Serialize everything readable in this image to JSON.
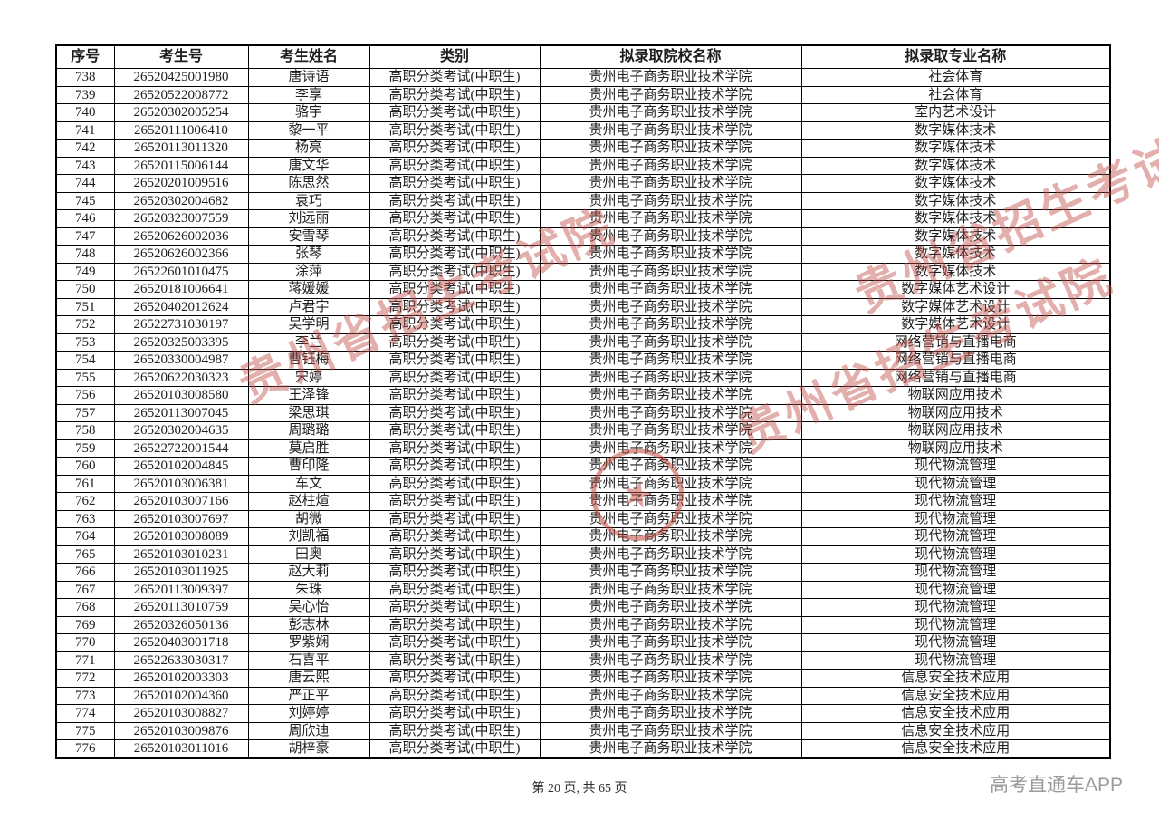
{
  "table": {
    "columns": [
      "序号",
      "考生号",
      "考生姓名",
      "类别",
      "拟录取院校名称",
      "拟录取专业名称"
    ],
    "rows": [
      [
        "738",
        "26520425001980",
        "唐诗语",
        "高职分类考试(中职生)",
        "贵州电子商务职业技术学院",
        "社会体育"
      ],
      [
        "739",
        "26520522008772",
        "李享",
        "高职分类考试(中职生)",
        "贵州电子商务职业技术学院",
        "社会体育"
      ],
      [
        "740",
        "26520302005254",
        "骆宇",
        "高职分类考试(中职生)",
        "贵州电子商务职业技术学院",
        "室内艺术设计"
      ],
      [
        "741",
        "26520111006410",
        "黎一平",
        "高职分类考试(中职生)",
        "贵州电子商务职业技术学院",
        "数字媒体技术"
      ],
      [
        "742",
        "26520113011320",
        "杨亮",
        "高职分类考试(中职生)",
        "贵州电子商务职业技术学院",
        "数字媒体技术"
      ],
      [
        "743",
        "26520115006144",
        "唐文华",
        "高职分类考试(中职生)",
        "贵州电子商务职业技术学院",
        "数字媒体技术"
      ],
      [
        "744",
        "26520201009516",
        "陈思然",
        "高职分类考试(中职生)",
        "贵州电子商务职业技术学院",
        "数字媒体技术"
      ],
      [
        "745",
        "26520302004682",
        "袁巧",
        "高职分类考试(中职生)",
        "贵州电子商务职业技术学院",
        "数字媒体技术"
      ],
      [
        "746",
        "26520323007559",
        "刘远丽",
        "高职分类考试(中职生)",
        "贵州电子商务职业技术学院",
        "数字媒体技术"
      ],
      [
        "747",
        "26520626002036",
        "安雪琴",
        "高职分类考试(中职生)",
        "贵州电子商务职业技术学院",
        "数字媒体技术"
      ],
      [
        "748",
        "26520626002366",
        "张琴",
        "高职分类考试(中职生)",
        "贵州电子商务职业技术学院",
        "数字媒体技术"
      ],
      [
        "749",
        "26522601010475",
        "涂萍",
        "高职分类考试(中职生)",
        "贵州电子商务职业技术学院",
        "数字媒体技术"
      ],
      [
        "750",
        "26520181006641",
        "蒋媛媛",
        "高职分类考试(中职生)",
        "贵州电子商务职业技术学院",
        "数字媒体艺术设计"
      ],
      [
        "751",
        "26520402012624",
        "卢君宇",
        "高职分类考试(中职生)",
        "贵州电子商务职业技术学院",
        "数字媒体艺术设计"
      ],
      [
        "752",
        "26522731030197",
        "吴学明",
        "高职分类考试(中职生)",
        "贵州电子商务职业技术学院",
        "数字媒体艺术设计"
      ],
      [
        "753",
        "26520325003395",
        "李兰",
        "高职分类考试(中职生)",
        "贵州电子商务职业技术学院",
        "网络营销与直播电商"
      ],
      [
        "754",
        "26520330004987",
        "曹钰梅",
        "高职分类考试(中职生)",
        "贵州电子商务职业技术学院",
        "网络营销与直播电商"
      ],
      [
        "755",
        "26520622030323",
        "宋婷",
        "高职分类考试(中职生)",
        "贵州电子商务职业技术学院",
        "网络营销与直播电商"
      ],
      [
        "756",
        "26520103008580",
        "王泽锋",
        "高职分类考试(中职生)",
        "贵州电子商务职业技术学院",
        "物联网应用技术"
      ],
      [
        "757",
        "26520113007045",
        "梁思琪",
        "高职分类考试(中职生)",
        "贵州电子商务职业技术学院",
        "物联网应用技术"
      ],
      [
        "758",
        "26520302004635",
        "周璐璐",
        "高职分类考试(中职生)",
        "贵州电子商务职业技术学院",
        "物联网应用技术"
      ],
      [
        "759",
        "26522722001544",
        "莫启胜",
        "高职分类考试(中职生)",
        "贵州电子商务职业技术学院",
        "物联网应用技术"
      ],
      [
        "760",
        "26520102004845",
        "曹印隆",
        "高职分类考试(中职生)",
        "贵州电子商务职业技术学院",
        "现代物流管理"
      ],
      [
        "761",
        "26520103006381",
        "车文",
        "高职分类考试(中职生)",
        "贵州电子商务职业技术学院",
        "现代物流管理"
      ],
      [
        "762",
        "26520103007166",
        "赵柱煊",
        "高职分类考试(中职生)",
        "贵州电子商务职业技术学院",
        "现代物流管理"
      ],
      [
        "763",
        "26520103007697",
        "胡微",
        "高职分类考试(中职生)",
        "贵州电子商务职业技术学院",
        "现代物流管理"
      ],
      [
        "764",
        "26520103008089",
        "刘凯福",
        "高职分类考试(中职生)",
        "贵州电子商务职业技术学院",
        "现代物流管理"
      ],
      [
        "765",
        "26520103010231",
        "田奥",
        "高职分类考试(中职生)",
        "贵州电子商务职业技术学院",
        "现代物流管理"
      ],
      [
        "766",
        "26520103011925",
        "赵大莉",
        "高职分类考试(中职生)",
        "贵州电子商务职业技术学院",
        "现代物流管理"
      ],
      [
        "767",
        "26520113009397",
        "朱珠",
        "高职分类考试(中职生)",
        "贵州电子商务职业技术学院",
        "现代物流管理"
      ],
      [
        "768",
        "26520113010759",
        "吴心怡",
        "高职分类考试(中职生)",
        "贵州电子商务职业技术学院",
        "现代物流管理"
      ],
      [
        "769",
        "26520326050136",
        "彭志林",
        "高职分类考试(中职生)",
        "贵州电子商务职业技术学院",
        "现代物流管理"
      ],
      [
        "770",
        "26520403001718",
        "罗紫娴",
        "高职分类考试(中职生)",
        "贵州电子商务职业技术学院",
        "现代物流管理"
      ],
      [
        "771",
        "26522633030317",
        "石喜平",
        "高职分类考试(中职生)",
        "贵州电子商务职业技术学院",
        "现代物流管理"
      ],
      [
        "772",
        "26520102003303",
        "唐云熙",
        "高职分类考试(中职生)",
        "贵州电子商务职业技术学院",
        "信息安全技术应用"
      ],
      [
        "773",
        "26520102004360",
        "严正平",
        "高职分类考试(中职生)",
        "贵州电子商务职业技术学院",
        "信息安全技术应用"
      ],
      [
        "774",
        "26520103008827",
        "刘婷婷",
        "高职分类考试(中职生)",
        "贵州电子商务职业技术学院",
        "信息安全技术应用"
      ],
      [
        "775",
        "26520103009876",
        "周欣迪",
        "高职分类考试(中职生)",
        "贵州电子商务职业技术学院",
        "信息安全技术应用"
      ],
      [
        "776",
        "26520103011016",
        "胡梓豪",
        "高职分类考试(中职生)",
        "贵州电子商务职业技术学院",
        "信息安全技术应用"
      ]
    ]
  },
  "footer": {
    "page_indicator": "第 20 页, 共 65 页",
    "brand": "高考直通车APP"
  },
  "watermark": {
    "text": "贵州省招生考试院",
    "color": "#c0504a",
    "seal_star_icon": "★"
  }
}
